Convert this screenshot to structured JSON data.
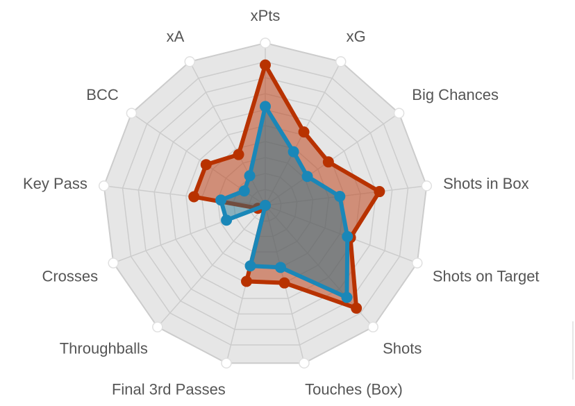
{
  "chart_data": {
    "type": "radar",
    "axes": [
      "xPts",
      "xG",
      "Big Chances",
      "Shots in Box",
      "Shots on Target",
      "Shots",
      "Touches (Box)",
      "Final 3rd Passes",
      "Throughballs",
      "Crosses",
      "Key Pass",
      "BCC",
      "xA"
    ],
    "rlim": [
      0,
      10
    ],
    "rings": 10,
    "grid": true,
    "legend": "none",
    "series": [
      {
        "color": "#b83200",
        "fill": "rgba(190,70,30,0.55)",
        "values": [
          8.8,
          5.2,
          4.8,
          7.2,
          5.7,
          8.6,
          5.0,
          4.9,
          0,
          0.5,
          4.5,
          4.5,
          3.6
        ]
      },
      {
        "color": "#1a87b8",
        "fill": "rgba(26,110,140,0.45)",
        "values": [
          6.2,
          3.8,
          3.2,
          4.7,
          5.5,
          7.7,
          4.0,
          3.9,
          0,
          2.6,
          2.8,
          1.6,
          2.1
        ]
      }
    ],
    "grid_fill": "#e6e6e6",
    "grid_line": "#cccccc"
  }
}
